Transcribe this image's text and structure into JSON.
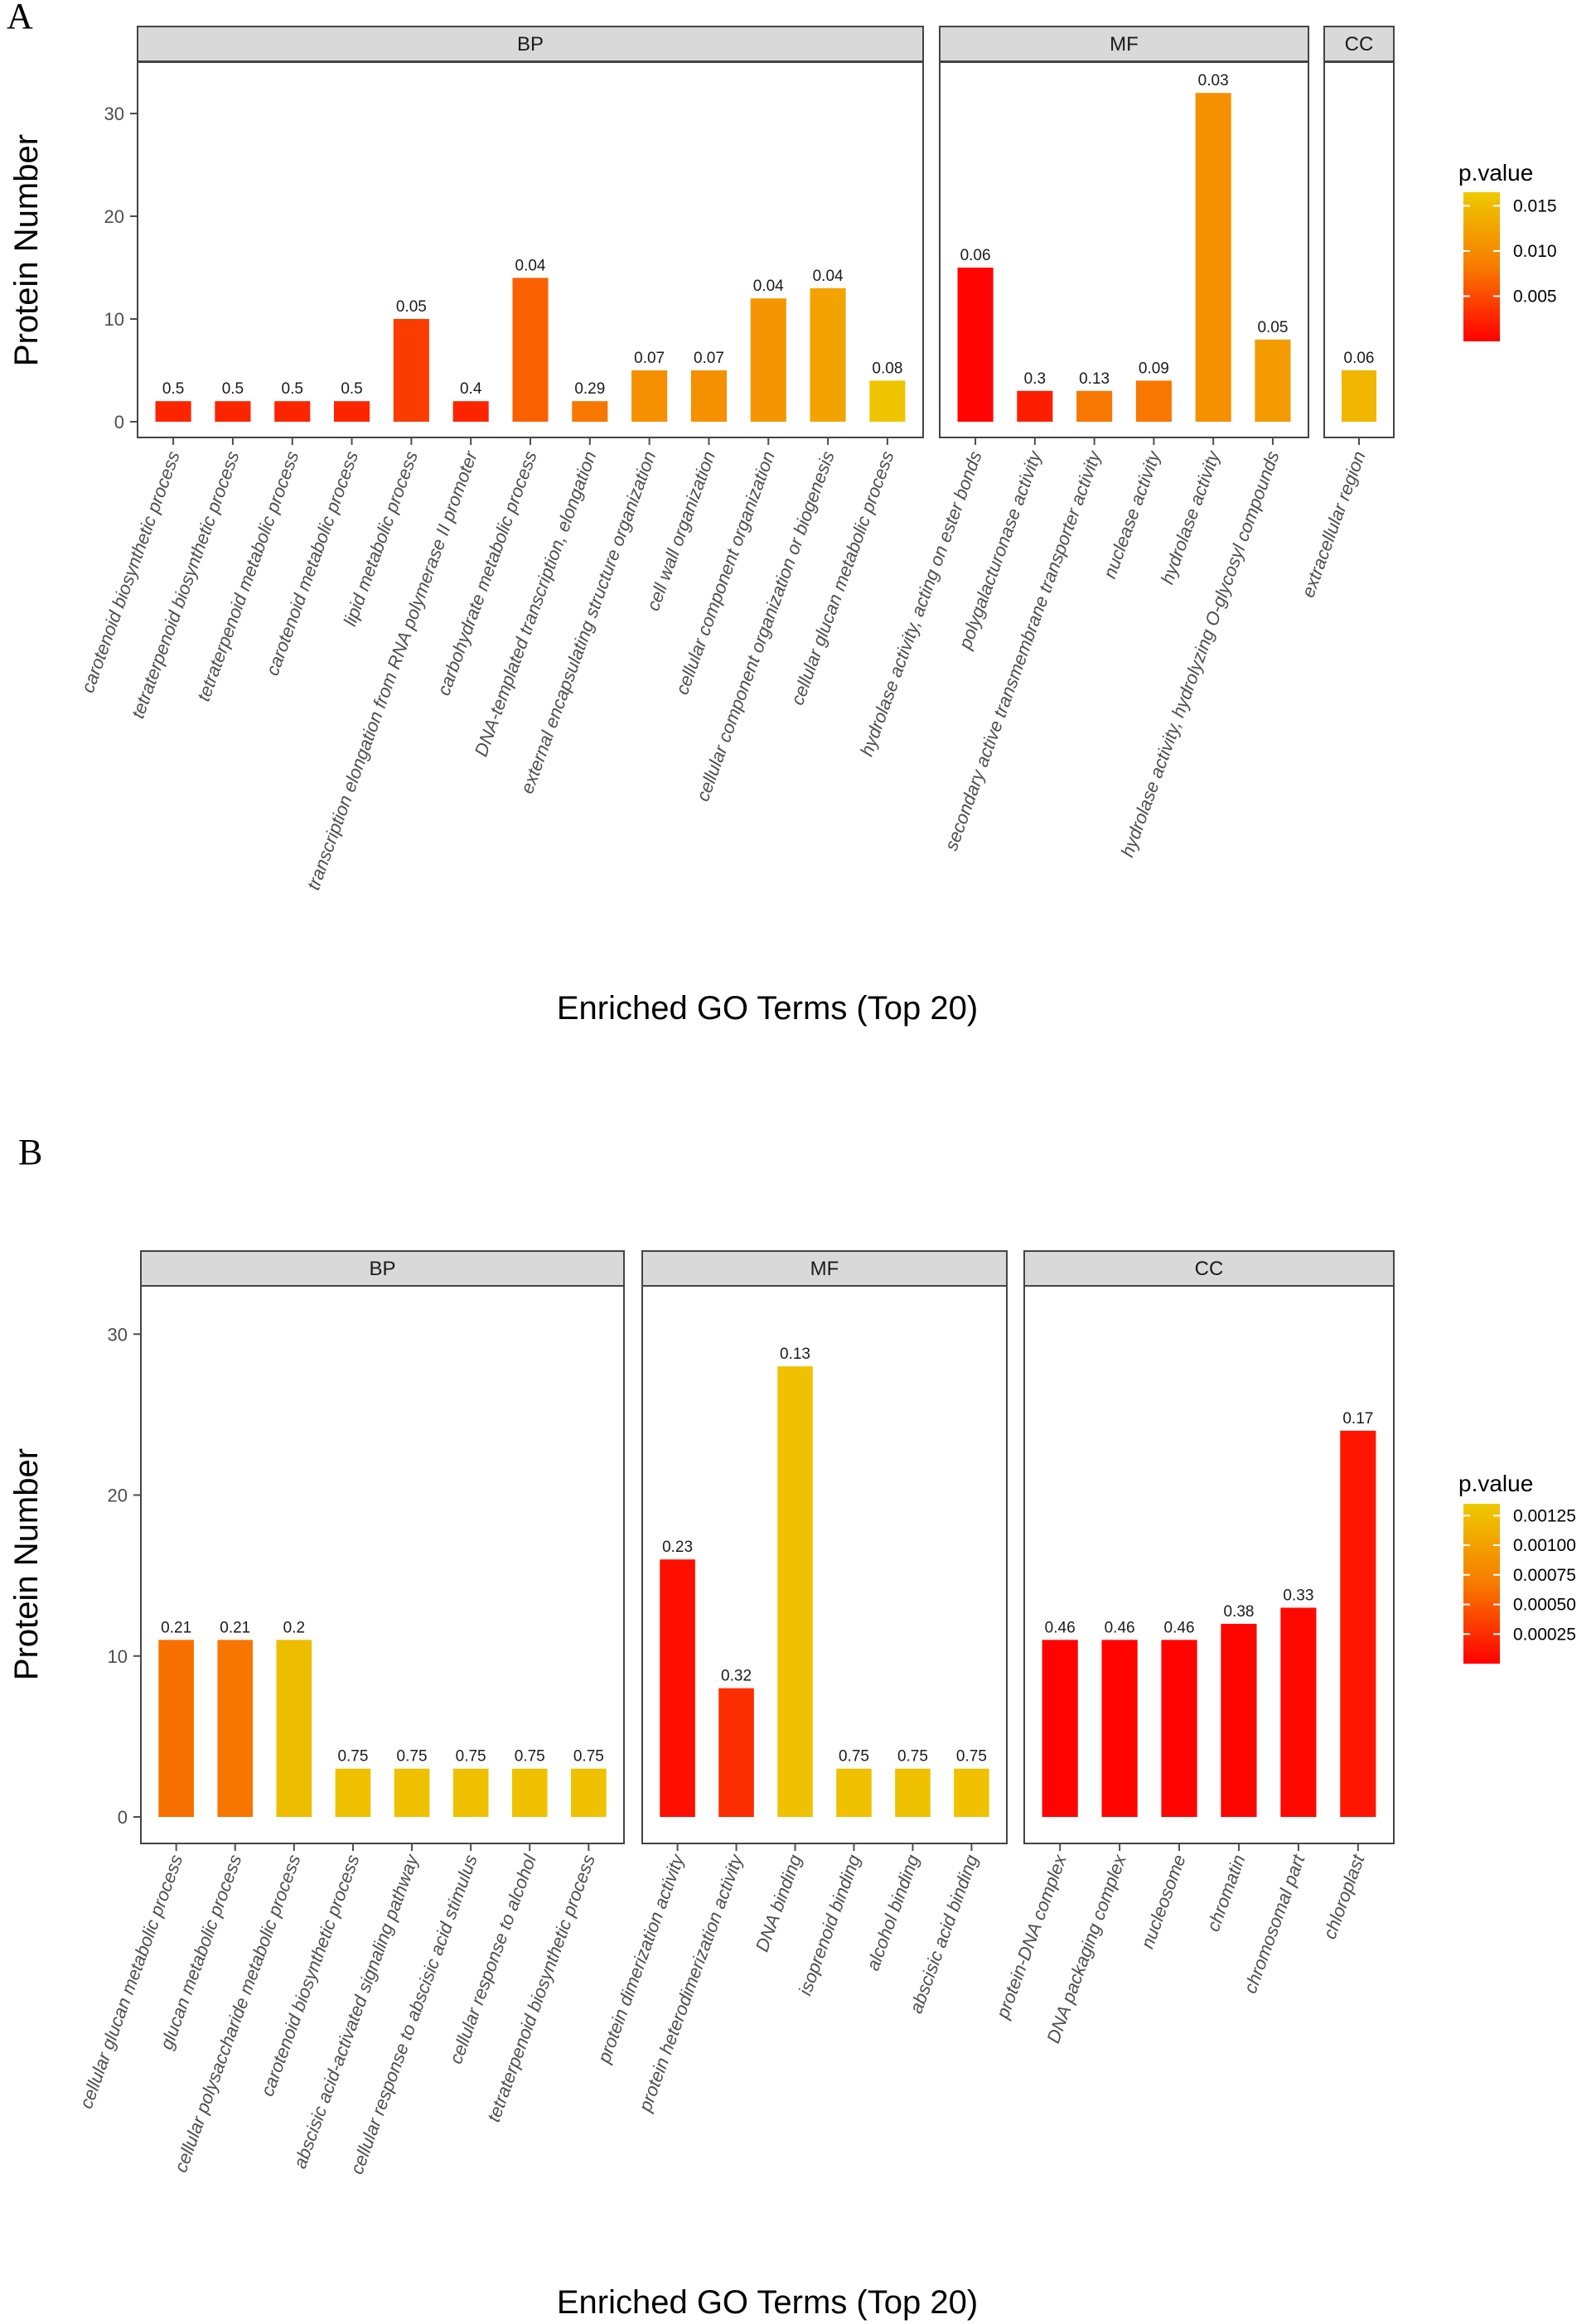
{
  "chart_data": [
    {
      "panel": "A",
      "type": "bar",
      "xlabel": "Enriched GO Terms (Top 20)",
      "ylabel": "Protein Number",
      "ylim": [
        0,
        35
      ],
      "yticks": [
        0,
        10,
        20,
        30
      ],
      "legend": {
        "title": "p.value",
        "placement": "right",
        "range": [
          0.0,
          0.0165
        ],
        "ticks": [
          0.015,
          0.01,
          0.005
        ],
        "tick_labels": [
          "0.015",
          "0.010",
          "0.005"
        ]
      },
      "facets": [
        {
          "name": "BP",
          "categories": [
            "carotenoid biosynthetic process",
            "tetraterpenoid biosynthetic process",
            "tetraterpenoid metabolic process",
            "carotenoid metabolic process",
            "lipid metabolic process",
            "transcription elongation from RNA polymerase II promoter",
            "carbohydrate metabolic process",
            "DNA-templated transcription, elongation",
            "external encapsulating structure organization",
            "cell wall organization",
            "cellular component organization",
            "cellular component organization or biogenesis",
            "cellular glucan metabolic process"
          ],
          "values": [
            2,
            2,
            2,
            2,
            10,
            2,
            14,
            2,
            5,
            5,
            12,
            13,
            4
          ],
          "labels": [
            "0.5",
            "0.5",
            "0.5",
            "0.5",
            "0.05",
            "0.4",
            "0.04",
            "0.29",
            "0.07",
            "0.07",
            "0.04",
            "0.04",
            "0.08"
          ],
          "pvalues": [
            0.0025,
            0.0025,
            0.0025,
            0.0025,
            0.004,
            0.0025,
            0.0065,
            0.008,
            0.0105,
            0.0105,
            0.011,
            0.0125,
            0.016
          ]
        },
        {
          "name": "MF",
          "categories": [
            "hydrolase activity, acting on ester bonds",
            "polygalacturonase activity",
            "secondary active transmembrane transporter activity",
            "nuclease activity",
            "hydrolase activity",
            "hydrolase activity, hydrolyzing O-glycosyl compounds"
          ],
          "values": [
            15,
            3,
            3,
            4,
            32,
            8
          ],
          "labels": [
            "0.06",
            "0.3",
            "0.13",
            "0.09",
            "0.03",
            "0.05"
          ],
          "pvalues": [
            0.0003,
            0.002,
            0.008,
            0.008,
            0.0105,
            0.0115
          ]
        },
        {
          "name": "CC",
          "categories": [
            "extracellular region"
          ],
          "values": [
            5
          ],
          "labels": [
            "0.06"
          ],
          "pvalues": [
            0.0145
          ]
        }
      ]
    },
    {
      "panel": "B",
      "type": "bar",
      "xlabel": "Enriched GO Terms (Top 20)",
      "ylabel": "Protein Number",
      "ylim": [
        0,
        33
      ],
      "yticks": [
        0,
        10,
        20,
        30
      ],
      "legend": {
        "title": "p.value",
        "placement": "right",
        "range": [
          0.0,
          0.00135
        ],
        "ticks": [
          0.00125,
          0.001,
          0.00075,
          0.0005,
          0.00025
        ],
        "tick_labels": [
          "0.00125",
          "0.00100",
          "0.00075",
          "0.00050",
          "0.00025"
        ]
      },
      "facets": [
        {
          "name": "BP",
          "categories": [
            "cellular glucan metabolic process",
            "glucan metabolic process",
            "cellular polysaccharide metabolic process",
            "carotenoid biosynthetic process",
            "abscisic acid-activated signaling pathway",
            "cellular response to abscisic acid stimulus",
            "cellular response to alcohol",
            "tetraterpenoid biosynthetic process"
          ],
          "values": [
            11,
            11,
            11,
            3,
            3,
            3,
            3,
            3
          ],
          "labels": [
            "0.21",
            "0.21",
            "0.2",
            "0.75",
            "0.75",
            "0.75",
            "0.75",
            "0.75"
          ],
          "pvalues": [
            0.00062,
            0.00065,
            0.00125,
            0.00128,
            0.00128,
            0.00128,
            0.00128,
            0.00128
          ]
        },
        {
          "name": "MF",
          "categories": [
            "protein dimerization activity",
            "protein heterodimerization activity",
            "DNA binding",
            "isoprenoid binding",
            "alcohol binding",
            "abscisic acid binding"
          ],
          "values": [
            16,
            8,
            28,
            3,
            3,
            3
          ],
          "labels": [
            "0.23",
            "0.32",
            "0.13",
            "0.75",
            "0.75",
            "0.75"
          ],
          "pvalues": [
            8e-05,
            0.00025,
            0.00128,
            0.00128,
            0.00128,
            0.00128
          ]
        },
        {
          "name": "CC",
          "categories": [
            "protein-DNA complex",
            "DNA packaging complex",
            "nucleosome",
            "chromatin",
            "chromosomal part",
            "chloroplast"
          ],
          "values": [
            11,
            11,
            11,
            12,
            13,
            24
          ],
          "labels": [
            "0.46",
            "0.46",
            "0.46",
            "0.38",
            "0.33",
            "0.17"
          ],
          "pvalues": [
            2e-05,
            2e-05,
            2e-05,
            3e-05,
            5e-05,
            0.00012
          ]
        }
      ]
    }
  ]
}
